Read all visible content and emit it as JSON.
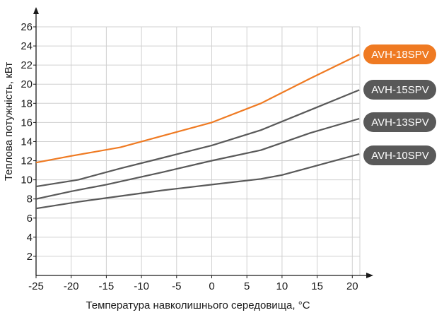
{
  "chart_data": {
    "type": "line",
    "title": "",
    "xlabel": "Температура навколишнього середовища, °С",
    "ylabel": "Теплова потужність, кВт",
    "xlim": [
      -25,
      21
    ],
    "ylim": [
      0,
      26
    ],
    "x_ticks": [
      "-25",
      "-20",
      "-15",
      "-10",
      "-5",
      "0",
      "5",
      "10",
      "15",
      "20"
    ],
    "y_ticks": [
      "2",
      "4",
      "6",
      "8",
      "10",
      "12",
      "14",
      "16",
      "18",
      "20",
      "22",
      "24",
      "26"
    ],
    "grid": true,
    "legend_position": "right",
    "series": [
      {
        "name": "AVH-18SPV",
        "color": "#ef7a22",
        "x": [
          -25,
          -20,
          -13,
          -7,
          0,
          7,
          14,
          21
        ],
        "y": [
          11.8,
          12.5,
          13.4,
          14.6,
          16.0,
          18.0,
          20.6,
          23.1
        ]
      },
      {
        "name": "AVH-15SPV",
        "color": "#595959",
        "x": [
          -25,
          -19,
          -13,
          -7,
          0,
          7,
          14,
          21
        ],
        "y": [
          9.3,
          10.0,
          11.2,
          12.3,
          13.6,
          15.2,
          17.3,
          19.4
        ]
      },
      {
        "name": "AVH-13SPV",
        "color": "#595959",
        "x": [
          -25,
          -20,
          -15,
          -7,
          0,
          7,
          14,
          21
        ],
        "y": [
          8.0,
          8.8,
          9.5,
          10.8,
          12.0,
          13.1,
          14.9,
          16.4
        ]
      },
      {
        "name": "AVH-10SPV",
        "color": "#595959",
        "x": [
          -25,
          -19,
          -13,
          -7,
          0,
          7,
          10,
          15,
          21
        ],
        "y": [
          7.0,
          7.7,
          8.3,
          8.9,
          9.5,
          10.1,
          10.5,
          11.5,
          12.7
        ]
      }
    ]
  }
}
